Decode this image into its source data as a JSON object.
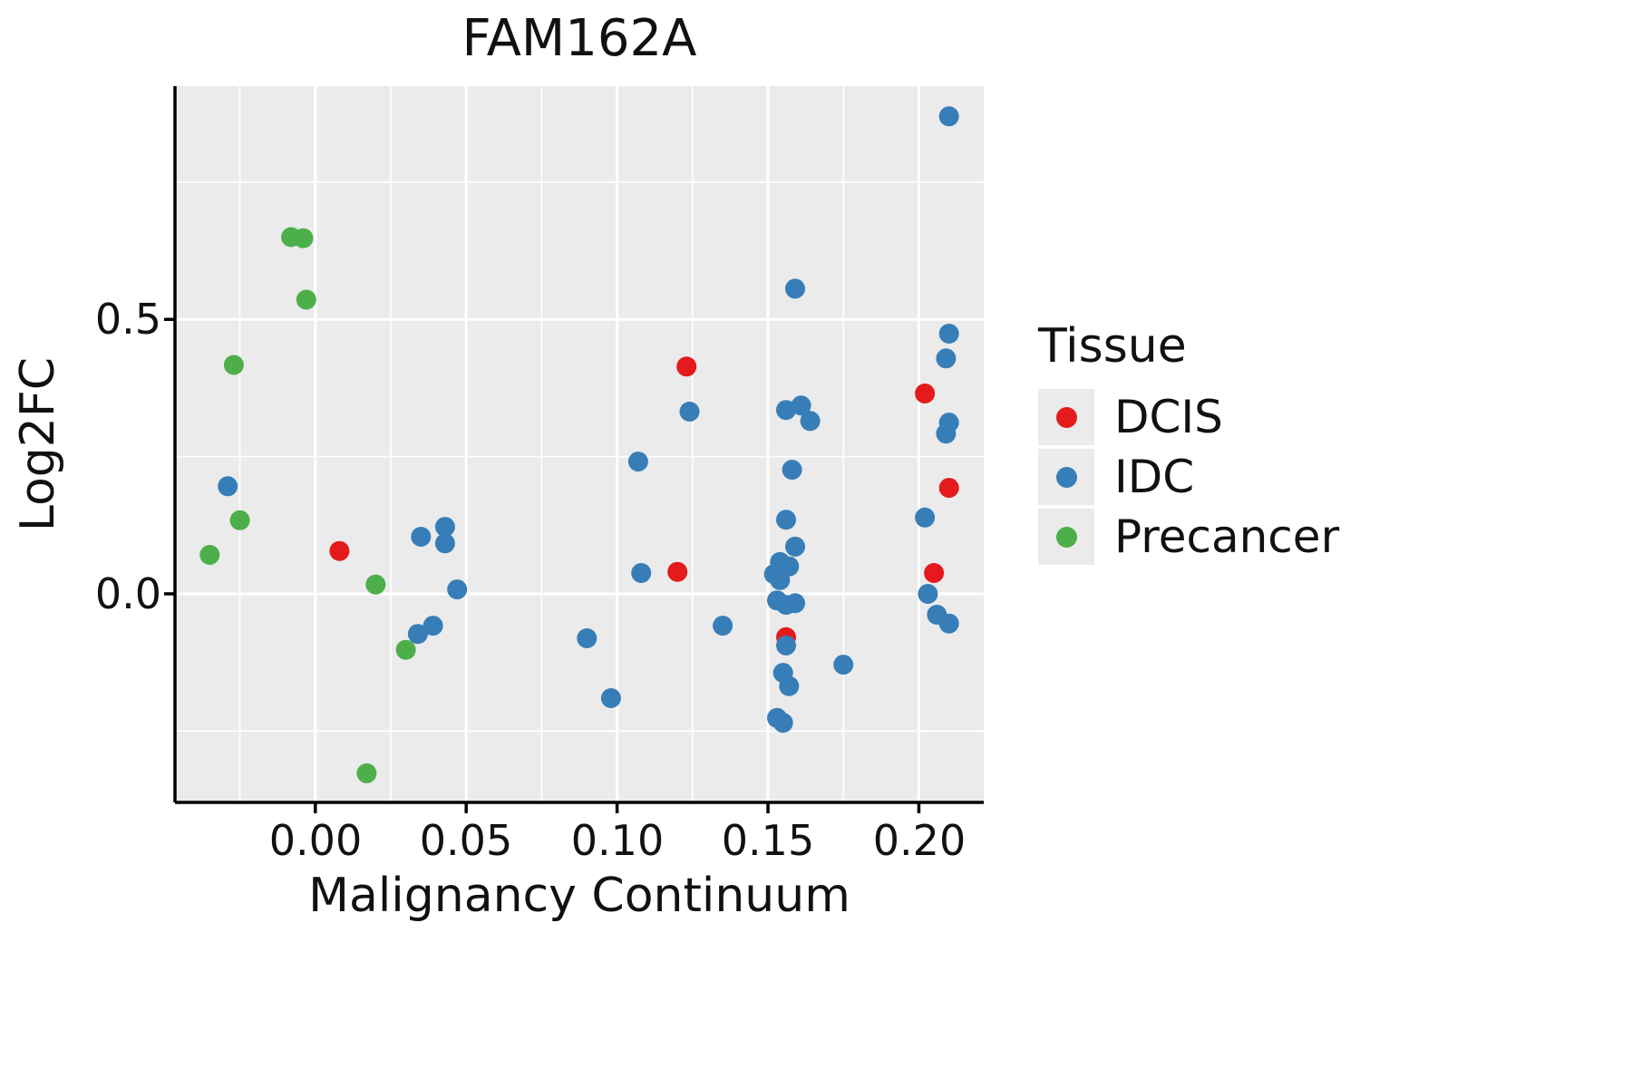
{
  "chart_data": {
    "type": "scatter",
    "title": "FAM162A",
    "xlabel": "Malignancy Continuum",
    "ylabel": "Log2FC",
    "xlim": [
      -0.0465,
      0.2215
    ],
    "ylim": [
      -0.38,
      0.925
    ],
    "grid": "on",
    "panel_bg": "#EBEBEB",
    "grid_color": "#FFFFFF",
    "axis_color": "#000000",
    "x_ticks": [
      {
        "value": 0.0,
        "label": "0.00"
      },
      {
        "value": 0.05,
        "label": "0.05"
      },
      {
        "value": 0.1,
        "label": "0.10"
      },
      {
        "value": 0.15,
        "label": "0.15"
      },
      {
        "value": 0.2,
        "label": "0.20"
      }
    ],
    "y_ticks": [
      {
        "value": 0.5,
        "label": "0.5"
      },
      {
        "value": 0.0,
        "label": "0.0"
      }
    ],
    "x_minor": [
      -0.025,
      0.025,
      0.075,
      0.125,
      0.175,
      0.225
    ],
    "y_minor": [
      -0.25,
      0.25,
      0.75
    ],
    "legend": {
      "title": "Tissue",
      "position": "right",
      "entries": [
        {
          "label": "DCIS",
          "color": "#E41A1C"
        },
        {
          "label": "IDC",
          "color": "#377EB8"
        },
        {
          "label": "Precancer",
          "color": "#4DAF4A"
        }
      ]
    },
    "series": [
      {
        "name": "DCIS",
        "color": "#E41A1C",
        "points": [
          [
            0.008,
            0.078
          ],
          [
            0.123,
            0.414
          ],
          [
            0.12,
            0.04
          ],
          [
            0.156,
            -0.079
          ],
          [
            0.202,
            0.365
          ],
          [
            0.21,
            0.193
          ],
          [
            0.205,
            0.038
          ]
        ]
      },
      {
        "name": "IDC",
        "color": "#377EB8",
        "points": [
          [
            -0.029,
            0.196
          ],
          [
            0.035,
            0.104
          ],
          [
            0.043,
            0.122
          ],
          [
            0.043,
            0.092
          ],
          [
            0.047,
            0.008
          ],
          [
            0.039,
            -0.058
          ],
          [
            0.034,
            -0.073
          ],
          [
            0.09,
            -0.081
          ],
          [
            0.098,
            -0.19
          ],
          [
            0.107,
            0.241
          ],
          [
            0.108,
            0.038
          ],
          [
            0.124,
            0.332
          ],
          [
            0.135,
            -0.058
          ],
          [
            0.159,
            0.556
          ],
          [
            0.156,
            0.335
          ],
          [
            0.161,
            0.343
          ],
          [
            0.164,
            0.315
          ],
          [
            0.158,
            0.226
          ],
          [
            0.156,
            0.135
          ],
          [
            0.159,
            0.086
          ],
          [
            0.154,
            0.058
          ],
          [
            0.157,
            0.05
          ],
          [
            0.152,
            0.036
          ],
          [
            0.154,
            0.025
          ],
          [
            0.153,
            -0.012
          ],
          [
            0.156,
            -0.02
          ],
          [
            0.159,
            -0.017
          ],
          [
            0.156,
            -0.094
          ],
          [
            0.155,
            -0.144
          ],
          [
            0.157,
            -0.168
          ],
          [
            0.153,
            -0.226
          ],
          [
            0.155,
            -0.235
          ],
          [
            0.175,
            -0.129
          ],
          [
            0.21,
            0.87
          ],
          [
            0.21,
            0.474
          ],
          [
            0.209,
            0.429
          ],
          [
            0.21,
            0.312
          ],
          [
            0.209,
            0.292
          ],
          [
            0.202,
            0.139
          ],
          [
            0.203,
            0.0
          ],
          [
            0.206,
            -0.038
          ],
          [
            0.21,
            -0.054
          ]
        ]
      },
      {
        "name": "Precancer",
        "color": "#4DAF4A",
        "points": [
          [
            -0.008,
            0.65
          ],
          [
            -0.004,
            0.648
          ],
          [
            -0.003,
            0.536
          ],
          [
            -0.027,
            0.417
          ],
          [
            -0.025,
            0.134
          ],
          [
            -0.035,
            0.071
          ],
          [
            0.02,
            0.017
          ],
          [
            0.03,
            -0.102
          ],
          [
            0.017,
            -0.327
          ]
        ]
      }
    ]
  }
}
